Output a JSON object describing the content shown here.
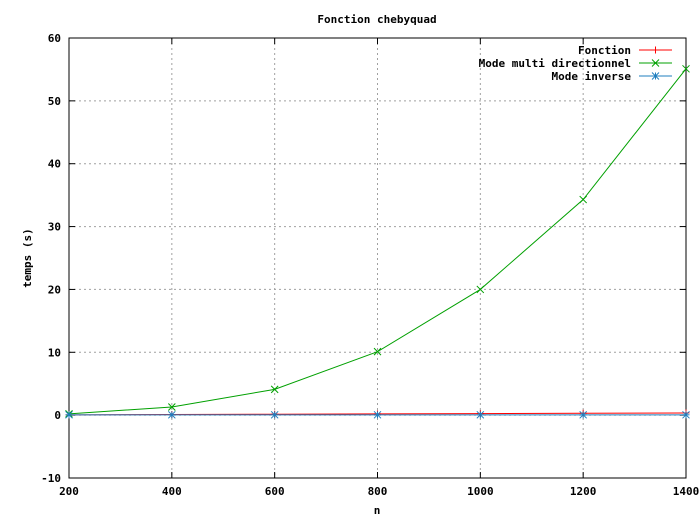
{
  "chart_data": {
    "type": "line",
    "title": "Fonction chebyquad",
    "xlabel": "n",
    "ylabel": "temps (s)",
    "xlim": [
      200,
      1400
    ],
    "ylim": [
      -10,
      60
    ],
    "xticks": [
      200,
      400,
      600,
      800,
      1000,
      1200,
      1400
    ],
    "yticks": [
      -10,
      0,
      10,
      20,
      30,
      40,
      50,
      60
    ],
    "grid": true,
    "legend_position": "top-right",
    "x": [
      200,
      400,
      600,
      800,
      1000,
      1200,
      1400
    ],
    "series": [
      {
        "name": "Fonction",
        "color": "#ff0000",
        "marker": "plus",
        "values": [
          0.05,
          0.1,
          0.15,
          0.2,
          0.25,
          0.3,
          0.35
        ]
      },
      {
        "name": "Mode multi directionnel",
        "color": "#00a000",
        "marker": "cross",
        "values": [
          0.2,
          1.3,
          4.1,
          10.1,
          20.0,
          34.3,
          55.1
        ]
      },
      {
        "name": "Mode inverse",
        "color": "#1f7fbf",
        "marker": "star",
        "values": [
          0.05,
          0.05,
          0.05,
          0.05,
          0.05,
          0.05,
          0.05
        ]
      }
    ]
  }
}
